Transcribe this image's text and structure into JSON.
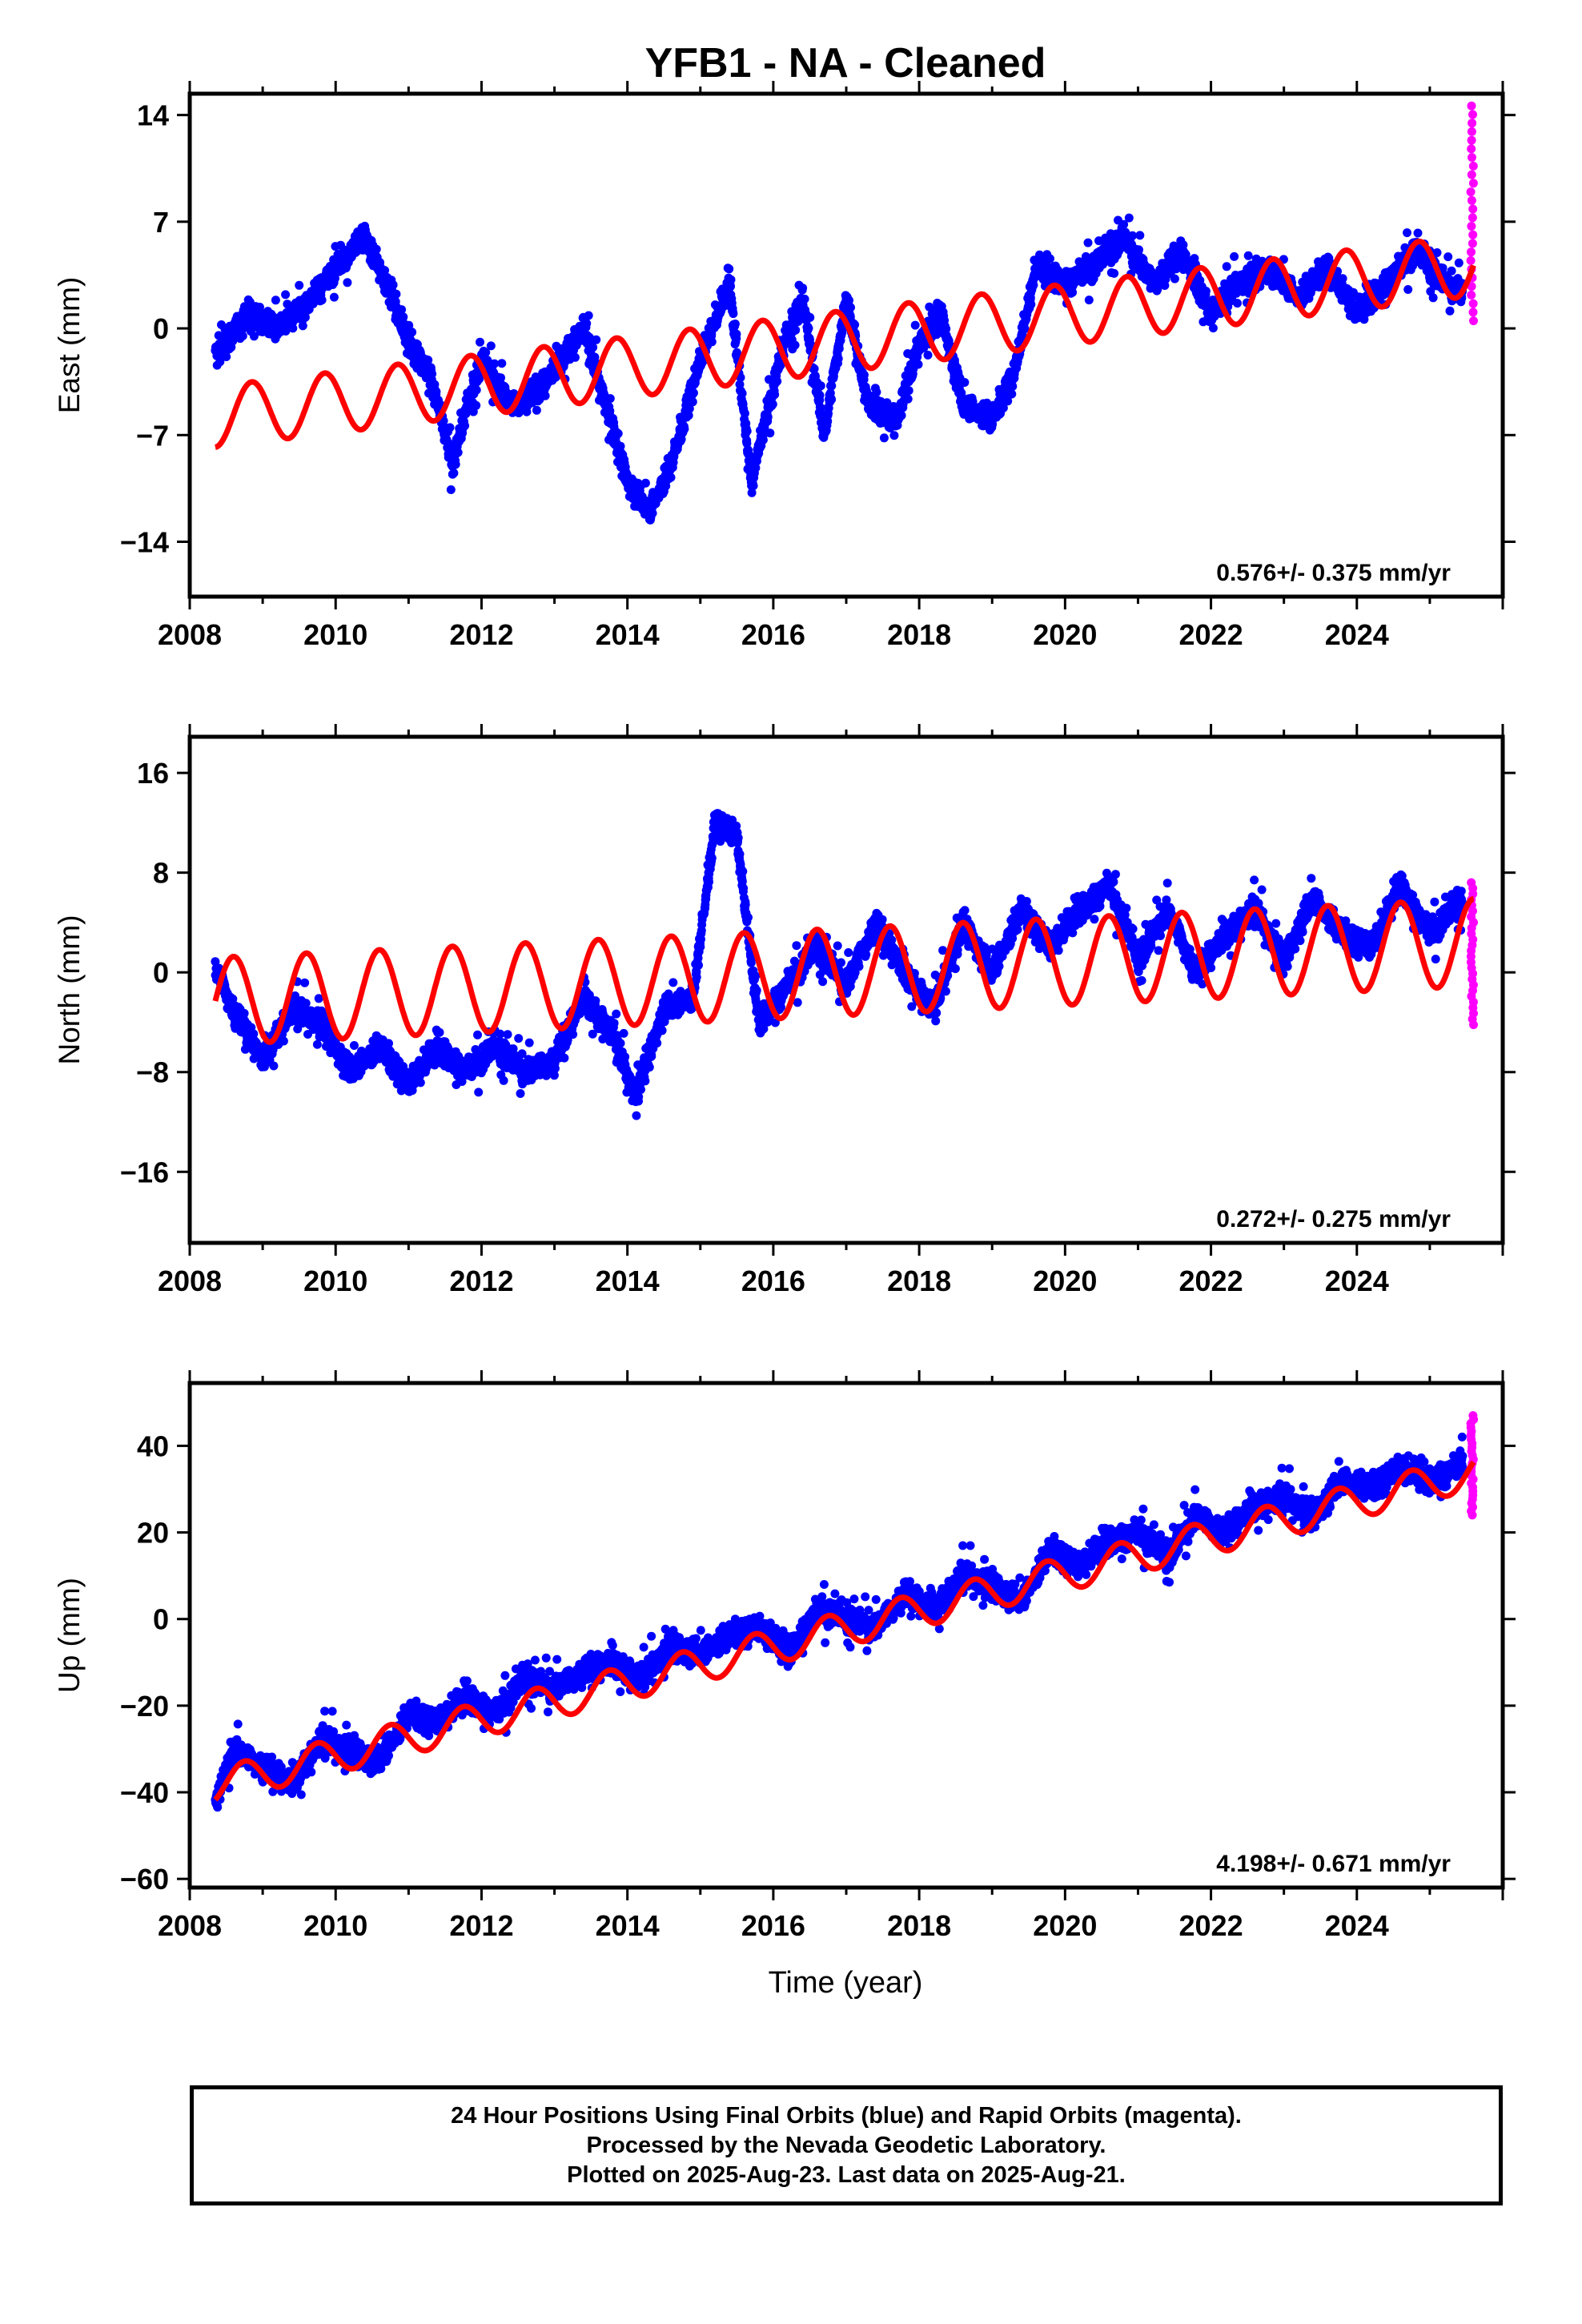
{
  "title": "YFB1  - NA - Cleaned",
  "xlabel": "Time (year)",
  "x_ticks": [
    "2008",
    "2010",
    "2012",
    "2014",
    "2016",
    "2018",
    "2020",
    "2022",
    "2024"
  ],
  "footer": {
    "line1": "24 Hour Positions Using Final Orbits (blue) and Rapid Orbits (magenta).",
    "line2": "Processed by the Nevada Geodetic Laboratory.",
    "line3": "Plotted on 2025-Aug-23. Last data on 2025-Aug-21."
  },
  "colors": {
    "final": "#0000ff",
    "rapid": "#ff00ff",
    "model": "#ff0000",
    "axes": "#000000"
  },
  "chart_data": [
    {
      "type": "scatter",
      "component": "East",
      "ylabel": "East (mm)",
      "yticks": [
        14,
        7,
        0,
        -7,
        -14
      ],
      "xlim": [
        2008,
        2026
      ],
      "ylim": [
        -17.6,
        15.4
      ],
      "rate_label": "0.576+/- 0.375 mm/yr",
      "model": {
        "start": 2008.35,
        "end": 2025.6,
        "y_at_start": -5.8,
        "slope": 0.576,
        "amplitude": 2.0,
        "phase_year": 2008.6
      },
      "rapid_range": [
        0.5,
        14.6
      ],
      "trend_points": [
        {
          "x": 2008.3,
          "y": -2
        },
        {
          "x": 2008.8,
          "y": 1
        },
        {
          "x": 2009.2,
          "y": 0
        },
        {
          "x": 2009.6,
          "y": 1.5
        },
        {
          "x": 2010.0,
          "y": 4
        },
        {
          "x": 2010.4,
          "y": 6
        },
        {
          "x": 2010.7,
          "y": 3
        },
        {
          "x": 2011.0,
          "y": -1
        },
        {
          "x": 2011.3,
          "y": -3
        },
        {
          "x": 2011.6,
          "y": -9
        },
        {
          "x": 2012.0,
          "y": -2
        },
        {
          "x": 2012.4,
          "y": -5
        },
        {
          "x": 2012.8,
          "y": -4
        },
        {
          "x": 2013.1,
          "y": -2
        },
        {
          "x": 2013.4,
          "y": 0
        },
        {
          "x": 2013.7,
          "y": -5
        },
        {
          "x": 2014.0,
          "y": -10
        },
        {
          "x": 2014.3,
          "y": -12
        },
        {
          "x": 2014.6,
          "y": -9
        },
        {
          "x": 2015.0,
          "y": -2
        },
        {
          "x": 2015.4,
          "y": 3
        },
        {
          "x": 2015.7,
          "y": -10
        },
        {
          "x": 2016.1,
          "y": -2
        },
        {
          "x": 2016.4,
          "y": 2
        },
        {
          "x": 2016.7,
          "y": -7
        },
        {
          "x": 2017.0,
          "y": 2
        },
        {
          "x": 2017.3,
          "y": -5
        },
        {
          "x": 2017.7,
          "y": -6
        },
        {
          "x": 2018.0,
          "y": -1
        },
        {
          "x": 2018.3,
          "y": 1
        },
        {
          "x": 2018.6,
          "y": -5
        },
        {
          "x": 2019.0,
          "y": -6
        },
        {
          "x": 2019.3,
          "y": -3
        },
        {
          "x": 2019.6,
          "y": 4
        },
        {
          "x": 2020.0,
          "y": 3
        },
        {
          "x": 2020.4,
          "y": 4
        },
        {
          "x": 2020.8,
          "y": 6
        },
        {
          "x": 2021.2,
          "y": 3
        },
        {
          "x": 2021.6,
          "y": 5
        },
        {
          "x": 2022.0,
          "y": 1
        },
        {
          "x": 2022.4,
          "y": 3
        },
        {
          "x": 2022.8,
          "y": 4
        },
        {
          "x": 2023.2,
          "y": 2
        },
        {
          "x": 2023.6,
          "y": 4
        },
        {
          "x": 2024.0,
          "y": 1
        },
        {
          "x": 2024.4,
          "y": 3
        },
        {
          "x": 2024.8,
          "y": 5
        },
        {
          "x": 2025.2,
          "y": 3
        },
        {
          "x": 2025.6,
          "y": 2
        }
      ]
    },
    {
      "type": "scatter",
      "component": "North",
      "ylabel": "North (mm)",
      "yticks": [
        16,
        8,
        0,
        -8,
        -16
      ],
      "xlim": [
        2008,
        2026
      ],
      "ylim": [
        -21.7,
        18.9
      ],
      "rate_label": "0.272+/- 0.275 mm/yr",
      "model": {
        "start": 2008.35,
        "end": 2025.6,
        "y_at_start": -2.3,
        "slope": 0.272,
        "amplitude": 3.5,
        "phase_year": 2008.35
      },
      "rapid_range": [
        -4.2,
        7.2
      ],
      "trend_points": [
        {
          "x": 2008.3,
          "y": 1
        },
        {
          "x": 2008.6,
          "y": -3
        },
        {
          "x": 2009.0,
          "y": -7
        },
        {
          "x": 2009.4,
          "y": -3
        },
        {
          "x": 2009.8,
          "y": -4
        },
        {
          "x": 2010.2,
          "y": -8
        },
        {
          "x": 2010.6,
          "y": -6
        },
        {
          "x": 2011.0,
          "y": -9
        },
        {
          "x": 2011.4,
          "y": -6
        },
        {
          "x": 2011.8,
          "y": -8
        },
        {
          "x": 2012.2,
          "y": -6
        },
        {
          "x": 2012.6,
          "y": -8
        },
        {
          "x": 2013.0,
          "y": -7
        },
        {
          "x": 2013.4,
          "y": -2
        },
        {
          "x": 2013.8,
          "y": -5
        },
        {
          "x": 2014.1,
          "y": -10
        },
        {
          "x": 2014.5,
          "y": -3
        },
        {
          "x": 2014.9,
          "y": -2
        },
        {
          "x": 2015.2,
          "y": 12
        },
        {
          "x": 2015.5,
          "y": 11
        },
        {
          "x": 2015.8,
          "y": -4
        },
        {
          "x": 2016.2,
          "y": -1
        },
        {
          "x": 2016.6,
          "y": 2
        },
        {
          "x": 2017.0,
          "y": -1
        },
        {
          "x": 2017.4,
          "y": 4
        },
        {
          "x": 2017.8,
          "y": 0
        },
        {
          "x": 2018.2,
          "y": -3
        },
        {
          "x": 2018.6,
          "y": 4
        },
        {
          "x": 2019.0,
          "y": 0
        },
        {
          "x": 2019.4,
          "y": 5
        },
        {
          "x": 2019.8,
          "y": 2
        },
        {
          "x": 2020.2,
          "y": 5
        },
        {
          "x": 2020.6,
          "y": 7
        },
        {
          "x": 2021.0,
          "y": 1
        },
        {
          "x": 2021.4,
          "y": 5
        },
        {
          "x": 2021.8,
          "y": 0
        },
        {
          "x": 2022.2,
          "y": 3
        },
        {
          "x": 2022.6,
          "y": 5
        },
        {
          "x": 2023.0,
          "y": 1
        },
        {
          "x": 2023.4,
          "y": 6
        },
        {
          "x": 2023.8,
          "y": 3
        },
        {
          "x": 2024.2,
          "y": 2
        },
        {
          "x": 2024.6,
          "y": 7
        },
        {
          "x": 2025.0,
          "y": 3
        },
        {
          "x": 2025.5,
          "y": 6
        }
      ]
    },
    {
      "type": "scatter",
      "component": "Up",
      "ylabel": "Up (mm)",
      "yticks": [
        40,
        20,
        0,
        -20,
        -40,
        -60
      ],
      "xlim": [
        2008,
        2026
      ],
      "ylim": [
        -62,
        54.5
      ],
      "rate_label": "4.198+/- 0.671 mm/yr",
      "model": {
        "start": 2008.35,
        "end": 2025.6,
        "y_at_start": -38.5,
        "slope": 4.198,
        "amplitude": 4.0,
        "phase_year": 2008.5
      },
      "rapid_range": [
        24,
        47
      ],
      "trend_points": [
        {
          "x": 2008.3,
          "y": -45
        },
        {
          "x": 2008.6,
          "y": -30
        },
        {
          "x": 2009.0,
          "y": -34
        },
        {
          "x": 2009.4,
          "y": -38
        },
        {
          "x": 2009.8,
          "y": -28
        },
        {
          "x": 2010.2,
          "y": -30
        },
        {
          "x": 2010.6,
          "y": -33
        },
        {
          "x": 2011.0,
          "y": -22
        },
        {
          "x": 2011.4,
          "y": -24
        },
        {
          "x": 2011.8,
          "y": -18
        },
        {
          "x": 2012.2,
          "y": -22
        },
        {
          "x": 2012.6,
          "y": -14
        },
        {
          "x": 2013.0,
          "y": -16
        },
        {
          "x": 2013.4,
          "y": -12
        },
        {
          "x": 2013.8,
          "y": -10
        },
        {
          "x": 2014.2,
          "y": -14
        },
        {
          "x": 2014.6,
          "y": -6
        },
        {
          "x": 2015.0,
          "y": -8
        },
        {
          "x": 2015.4,
          "y": -4
        },
        {
          "x": 2015.8,
          "y": -2
        },
        {
          "x": 2016.2,
          "y": -8
        },
        {
          "x": 2016.6,
          "y": 2
        },
        {
          "x": 2017.0,
          "y": 0
        },
        {
          "x": 2017.4,
          "y": -2
        },
        {
          "x": 2017.8,
          "y": 6
        },
        {
          "x": 2018.2,
          "y": 2
        },
        {
          "x": 2018.6,
          "y": 10
        },
        {
          "x": 2019.0,
          "y": 8
        },
        {
          "x": 2019.4,
          "y": 4
        },
        {
          "x": 2019.8,
          "y": 16
        },
        {
          "x": 2020.2,
          "y": 12
        },
        {
          "x": 2020.6,
          "y": 18
        },
        {
          "x": 2021.0,
          "y": 20
        },
        {
          "x": 2021.4,
          "y": 14
        },
        {
          "x": 2021.8,
          "y": 24
        },
        {
          "x": 2022.2,
          "y": 20
        },
        {
          "x": 2022.6,
          "y": 26
        },
        {
          "x": 2023.0,
          "y": 28
        },
        {
          "x": 2023.4,
          "y": 24
        },
        {
          "x": 2023.8,
          "y": 32
        },
        {
          "x": 2024.2,
          "y": 30
        },
        {
          "x": 2024.6,
          "y": 35
        },
        {
          "x": 2025.0,
          "y": 32
        },
        {
          "x": 2025.5,
          "y": 36
        }
      ]
    }
  ]
}
